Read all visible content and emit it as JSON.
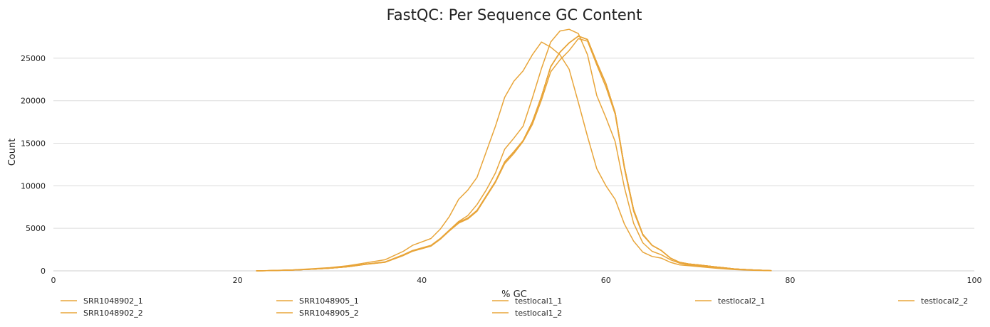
{
  "chart_data": {
    "type": "line",
    "title": "FastQC: Per Sequence GC Content",
    "xlabel": "% GC",
    "ylabel": "Count",
    "xlim": [
      0,
      100
    ],
    "ylim": [
      0,
      28500
    ],
    "x_ticks": [
      0,
      20,
      40,
      60,
      80,
      100
    ],
    "y_ticks": [
      0,
      5000,
      10000,
      15000,
      20000,
      25000
    ],
    "grid": "horizontal",
    "legend_position": "bottom",
    "line_color": "#e8a53a",
    "series": [
      {
        "name": "SRR1048902_1",
        "x": [
          22,
          24,
          26,
          28,
          30,
          32,
          34,
          36,
          38,
          39,
          40,
          41,
          42,
          43,
          44,
          45,
          46,
          47,
          48,
          49,
          50,
          51,
          52,
          53,
          54,
          55,
          56,
          57,
          58,
          59,
          60,
          61,
          62,
          63,
          64,
          65,
          66,
          67,
          68,
          69,
          70,
          72,
          74,
          76,
          78
        ],
        "values": [
          0,
          40,
          100,
          200,
          320,
          500,
          800,
          1050,
          1900,
          2400,
          2700,
          3000,
          3800,
          4800,
          5800,
          6500,
          7800,
          9500,
          11500,
          14300,
          15600,
          17000,
          20300,
          23800,
          26900,
          28200,
          28400,
          27900,
          25400,
          20600,
          18000,
          15200,
          9800,
          5600,
          3300,
          2300,
          1900,
          1300,
          900,
          700,
          600,
          400,
          200,
          100,
          20
        ]
      },
      {
        "name": "SRR1048902_2",
        "x": [
          22,
          24,
          26,
          28,
          30,
          32,
          34,
          36,
          38,
          39,
          40,
          41,
          42,
          43,
          44,
          45,
          46,
          47,
          48,
          49,
          50,
          51,
          52,
          53,
          54,
          55,
          56,
          57,
          58,
          59,
          60,
          61,
          62,
          63,
          64,
          65,
          66,
          67,
          68,
          69,
          70,
          72,
          74,
          76,
          78
        ],
        "values": [
          0,
          40,
          90,
          180,
          300,
          480,
          780,
          1000,
          1800,
          2300,
          2600,
          2900,
          3700,
          4700,
          5600,
          6100,
          7000,
          8700,
          10400,
          12600,
          13800,
          15200,
          17200,
          20100,
          23400,
          24800,
          25900,
          27300,
          27000,
          24200,
          21600,
          18400,
          12000,
          7000,
          4200,
          3000,
          2400,
          1500,
          1000,
          800,
          700,
          450,
          220,
          100,
          20
        ]
      },
      {
        "name": "SRR1048905_1",
        "x": [
          22,
          24,
          26,
          28,
          30,
          32,
          34,
          36,
          38,
          39,
          40,
          41,
          42,
          43,
          44,
          45,
          46,
          47,
          48,
          49,
          50,
          51,
          52,
          53,
          54,
          55,
          56,
          57,
          58,
          59,
          60,
          61,
          62,
          63,
          64,
          65,
          66,
          67,
          68,
          69,
          70,
          72,
          74,
          76,
          78
        ],
        "values": [
          0,
          50,
          120,
          240,
          380,
          600,
          950,
          1300,
          2300,
          3000,
          3400,
          3800,
          4900,
          6400,
          8400,
          9500,
          11000,
          14000,
          17000,
          20400,
          22300,
          23500,
          25400,
          26900,
          26300,
          25400,
          23700,
          19800,
          15800,
          12000,
          10000,
          8400,
          5500,
          3500,
          2200,
          1700,
          1500,
          1000,
          700,
          600,
          500,
          300,
          150,
          70,
          10
        ]
      },
      {
        "name": "SRR1048905_2",
        "x": [
          22,
          24,
          26,
          28,
          30,
          32,
          34,
          36,
          38,
          39,
          40,
          41,
          42,
          43,
          44,
          45,
          46,
          47,
          48,
          49,
          50,
          51,
          52,
          53,
          54,
          55,
          56,
          57,
          58,
          59,
          60,
          61,
          62,
          63,
          64,
          65,
          66,
          67,
          68,
          69,
          70,
          72,
          74,
          76,
          78
        ],
        "values": [
          0,
          40,
          95,
          190,
          310,
          490,
          790,
          1020,
          1850,
          2350,
          2650,
          2950,
          3750,
          4750,
          5700,
          6200,
          7100,
          8800,
          10500,
          12800,
          14000,
          15300,
          17500,
          20500,
          24000,
          25700,
          26800,
          27600,
          27200,
          24500,
          22000,
          18600,
          12200,
          7200,
          4300,
          3000,
          2400,
          1500,
          1000,
          800,
          700,
          450,
          220,
          100,
          20
        ]
      },
      {
        "name": "testlocal1_1",
        "x": [
          22,
          24,
          26,
          28,
          30,
          32,
          34,
          36,
          38,
          39,
          40,
          41,
          42,
          43,
          44,
          45,
          46,
          47,
          48,
          49,
          50,
          51,
          52,
          53,
          54,
          55,
          56,
          57,
          58,
          59,
          60,
          61,
          62,
          63,
          64,
          65,
          66,
          67,
          68,
          69,
          70,
          72,
          74,
          76,
          78
        ],
        "values": [
          0,
          40,
          95,
          190,
          310,
          490,
          790,
          1020,
          1850,
          2350,
          2650,
          2950,
          3750,
          4750,
          5700,
          6200,
          7100,
          8800,
          10500,
          12800,
          14000,
          15300,
          17500,
          20500,
          24000,
          25700,
          26800,
          27600,
          27200,
          24500,
          22000,
          18600,
          12200,
          7200,
          4300,
          3000,
          2400,
          1500,
          1000,
          800,
          700,
          450,
          220,
          100,
          20
        ]
      },
      {
        "name": "testlocal1_2",
        "x": [
          22,
          24,
          26,
          28,
          30,
          32,
          34,
          36,
          38,
          39,
          40,
          41,
          42,
          43,
          44,
          45,
          46,
          47,
          48,
          49,
          50,
          51,
          52,
          53,
          54,
          55,
          56,
          57,
          58,
          59,
          60,
          61,
          62,
          63,
          64,
          65,
          66,
          67,
          68,
          69,
          70,
          72,
          74,
          76,
          78
        ],
        "values": [
          0,
          40,
          95,
          190,
          310,
          490,
          790,
          1020,
          1850,
          2350,
          2650,
          2950,
          3750,
          4750,
          5700,
          6200,
          7100,
          8800,
          10500,
          12800,
          14000,
          15300,
          17500,
          20500,
          24000,
          25700,
          26800,
          27600,
          27200,
          24500,
          22000,
          18600,
          12200,
          7200,
          4300,
          3000,
          2400,
          1500,
          1000,
          800,
          700,
          450,
          220,
          100,
          20
        ]
      },
      {
        "name": "testlocal2_1",
        "x": [
          22,
          24,
          26,
          28,
          30,
          32,
          34,
          36,
          38,
          39,
          40,
          41,
          42,
          43,
          44,
          45,
          46,
          47,
          48,
          49,
          50,
          51,
          52,
          53,
          54,
          55,
          56,
          57,
          58,
          59,
          60,
          61,
          62,
          63,
          64,
          65,
          66,
          67,
          68,
          69,
          70,
          72,
          74,
          76,
          78
        ],
        "values": [
          0,
          40,
          95,
          190,
          310,
          490,
          790,
          1020,
          1850,
          2350,
          2650,
          2950,
          3750,
          4750,
          5700,
          6200,
          7100,
          8800,
          10500,
          12800,
          14000,
          15300,
          17500,
          20500,
          24000,
          25700,
          26800,
          27600,
          27200,
          24500,
          22000,
          18600,
          12200,
          7200,
          4300,
          3000,
          2400,
          1500,
          1000,
          800,
          700,
          450,
          220,
          100,
          20
        ]
      },
      {
        "name": "testlocal2_2",
        "x": [
          22,
          24,
          26,
          28,
          30,
          32,
          34,
          36,
          38,
          39,
          40,
          41,
          42,
          43,
          44,
          45,
          46,
          47,
          48,
          49,
          50,
          51,
          52,
          53,
          54,
          55,
          56,
          57,
          58,
          59,
          60,
          61,
          62,
          63,
          64,
          65,
          66,
          67,
          68,
          69,
          70,
          72,
          74,
          76,
          78
        ],
        "values": [
          0,
          40,
          95,
          190,
          310,
          490,
          790,
          1020,
          1850,
          2350,
          2650,
          2950,
          3750,
          4750,
          5700,
          6200,
          7100,
          8800,
          10500,
          12800,
          14000,
          15300,
          17500,
          20500,
          24000,
          25700,
          26800,
          27600,
          27200,
          24500,
          22000,
          18600,
          12200,
          7200,
          4300,
          3000,
          2400,
          1500,
          1000,
          800,
          700,
          450,
          220,
          100,
          20
        ]
      }
    ]
  }
}
